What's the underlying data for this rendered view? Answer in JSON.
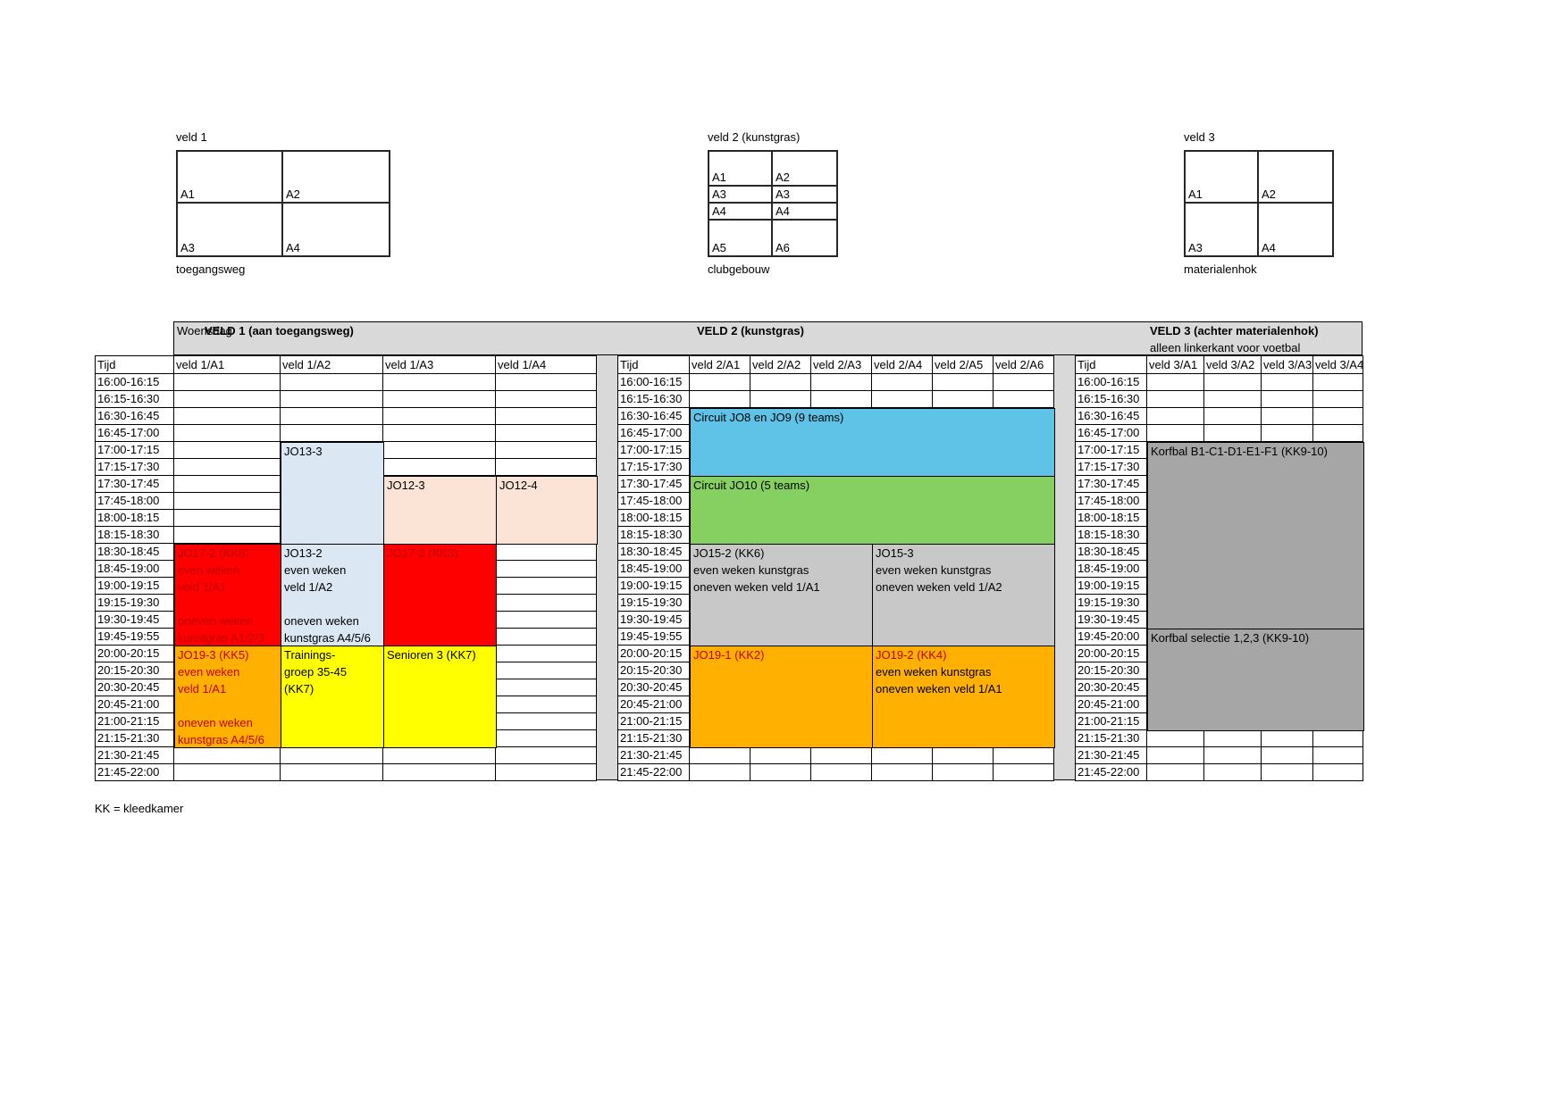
{
  "footnote": "KK = kleedkamer",
  "fields": [
    {
      "title": "veld 1",
      "caption": "toegangsweg",
      "rows": [
        [
          "A1",
          "A2"
        ],
        [
          "A3",
          "A4"
        ]
      ]
    },
    {
      "title": "veld 2 (kunstgras)",
      "caption": "clubgebouw",
      "rows": [
        [
          "A1",
          "A2"
        ],
        [
          "A3",
          "A3"
        ],
        [
          "A4",
          "A4"
        ],
        [
          "A5",
          "A6"
        ]
      ]
    },
    {
      "title": "veld 3",
      "caption": "materialenhok",
      "rows": [
        [
          "A1",
          "A2"
        ],
        [
          "A3",
          "A4"
        ]
      ]
    }
  ],
  "schedule": {
    "day": "Woensdag",
    "time_header": "Tijd",
    "times": [
      "16:00-16:15",
      "16:15-16:30",
      "16:30-16:45",
      "16:45-17:00",
      "17:00-17:15",
      "17:15-17:30",
      "17:30-17:45",
      "17:45-18:00",
      "18:00-18:15",
      "18:15-18:30",
      "18:30-18:45",
      "18:45-19:00",
      "19:00-19:15",
      "19:15-19:30",
      "19:30-19:45",
      "19:45-19:55",
      "20:00-20:15",
      "20:15-20:30",
      "20:30-20:45",
      "20:45-21:00",
      "21:00-21:15",
      "21:15-21:30",
      "21:30-21:45",
      "21:45-22:00"
    ],
    "times_veld3": [
      "16:00-16:15",
      "16:15-16:30",
      "16:30-16:45",
      "16:45-17:00",
      "17:00-17:15",
      "17:15-17:30",
      "17:30-17:45",
      "17:45-18:00",
      "18:00-18:15",
      "18:15-18:30",
      "18:30-18:45",
      "18:45-19:00",
      "19:00-19:15",
      "19:15-19:30",
      "19:30-19:45",
      "19:45-20:00",
      "20:00-20:15",
      "20:15-20:30",
      "20:30-20:45",
      "20:45-21:00",
      "21:00-21:15",
      "21:15-21:30",
      "21:30-21:45",
      "21:45-22:00"
    ],
    "sections": [
      {
        "id": "veld1",
        "title": "VELD 1 (aan toegangsweg)",
        "subtitle": "",
        "columns": [
          "veld 1/A1",
          "veld 1/A2",
          "veld 1/A3",
          "veld 1/A4"
        ],
        "times_key": "times",
        "blocks": [
          {
            "c0": 1,
            "c1": 1,
            "r0": 4,
            "r1": 9,
            "color": "lightblue",
            "lines": [
              "JO13-3"
            ]
          },
          {
            "c0": 2,
            "c1": 2,
            "r0": 6,
            "r1": 9,
            "color": "peach",
            "lines": [
              "JO12-3"
            ]
          },
          {
            "c0": 3,
            "c1": 3,
            "r0": 6,
            "r1": 9,
            "color": "peach",
            "lines": [
              "JO12-4"
            ]
          },
          {
            "c0": 0,
            "c1": 0,
            "r0": 10,
            "r1": 15,
            "color": "red",
            "text": "darkred",
            "lines": [
              "JO17-2 (KK8)",
              "even weken",
              "veld 1/A1",
              "",
              "oneven weken",
              "kunstgras A1/2/3"
            ]
          },
          {
            "c0": 1,
            "c1": 1,
            "r0": 10,
            "r1": 15,
            "color": "lightblue",
            "lines": [
              "JO13-2",
              "even weken",
              "veld 1/A2",
              "",
              "oneven weken",
              "kunstgras A4/5/6"
            ]
          },
          {
            "c0": 2,
            "c1": 2,
            "r0": 10,
            "r1": 15,
            "color": "red",
            "text": "darkred",
            "lines": [
              "JO17-3 (KK3)"
            ]
          },
          {
            "c0": 0,
            "c1": 0,
            "r0": 16,
            "r1": 21,
            "color": "orange",
            "text": "darkred",
            "lines": [
              "JO19-3 (KK5)",
              "even weken",
              "veld 1/A1",
              "",
              "oneven weken",
              "kunstgras A4/5/6"
            ]
          },
          {
            "c0": 1,
            "c1": 1,
            "r0": 16,
            "r1": 21,
            "color": "yellow",
            "lines": [
              "Trainings-",
              "groep 35-45",
              "(KK7)"
            ]
          },
          {
            "c0": 2,
            "c1": 2,
            "r0": 16,
            "r1": 21,
            "color": "yellow",
            "lines": [
              "Senioren 3 (KK7)"
            ]
          }
        ]
      },
      {
        "id": "veld2",
        "title": "VELD 2 (kunstgras)",
        "subtitle": "",
        "columns": [
          "veld 2/A1",
          "veld 2/A2",
          "veld 2/A3",
          "veld 2/A4",
          "veld 2/A5",
          "veld 2/A6"
        ],
        "times_key": "times",
        "blocks": [
          {
            "c0": 0,
            "c1": 5,
            "r0": 2,
            "r1": 5,
            "color": "blue",
            "lines": [
              "Circuit JO8 en JO9 (9 teams)"
            ]
          },
          {
            "c0": 0,
            "c1": 5,
            "r0": 6,
            "r1": 9,
            "color": "green",
            "lines": [
              "Circuit JO10 (5 teams)"
            ]
          },
          {
            "c0": 0,
            "c1": 2,
            "r0": 10,
            "r1": 15,
            "color": "midgray",
            "lines": [
              "JO15-2 (KK6)",
              "even weken kunstgras",
              "oneven weken veld 1/A1"
            ]
          },
          {
            "c0": 3,
            "c1": 5,
            "r0": 10,
            "r1": 15,
            "color": "midgray",
            "lines": [
              "JO15-3",
              "even weken kunstgras",
              "oneven weken veld 1/A2"
            ]
          },
          {
            "c0": 0,
            "c1": 2,
            "r0": 16,
            "r1": 21,
            "color": "orange",
            "title_color": "darkred",
            "lines": [
              "JO19-1 (KK2)"
            ]
          },
          {
            "c0": 3,
            "c1": 5,
            "r0": 16,
            "r1": 21,
            "color": "orange",
            "title_color": "darkred",
            "lines": [
              "JO19-2 (KK4)",
              "even weken kunstgras",
              "oneven weken veld 1/A1"
            ]
          }
        ]
      },
      {
        "id": "veld3",
        "title": "VELD 3 (achter materialenhok)",
        "subtitle": "alleen linkerkant voor voetbal",
        "columns": [
          "veld 3/A1",
          "veld 3/A2",
          "veld 3/A3",
          "veld 3/A4"
        ],
        "times_key": "times_veld3",
        "blocks": [
          {
            "c0": 0,
            "c1": 3,
            "r0": 4,
            "r1": 14,
            "color": "darkgray",
            "lines": [
              "Korfbal B1-C1-D1-E1-F1 (KK9-10)"
            ]
          },
          {
            "c0": 0,
            "c1": 3,
            "r0": 15,
            "r1": 20,
            "color": "darkgray",
            "lines": [
              "Korfbal selectie 1,2,3 (KK9-10)"
            ]
          }
        ]
      }
    ]
  },
  "colors": {
    "band": "#D9D9D9",
    "midgray": "#C8C8C8",
    "darkgray": "#A6A6A6",
    "blue": "#5FC2E7",
    "green": "#85D061",
    "lightblue": "#DBE7F3",
    "peach": "#FBE3D5",
    "red": "#FF0000",
    "orange": "#FFB000",
    "yellow": "#FFFF00",
    "darkred": "#C00000",
    "black": "#000000"
  }
}
